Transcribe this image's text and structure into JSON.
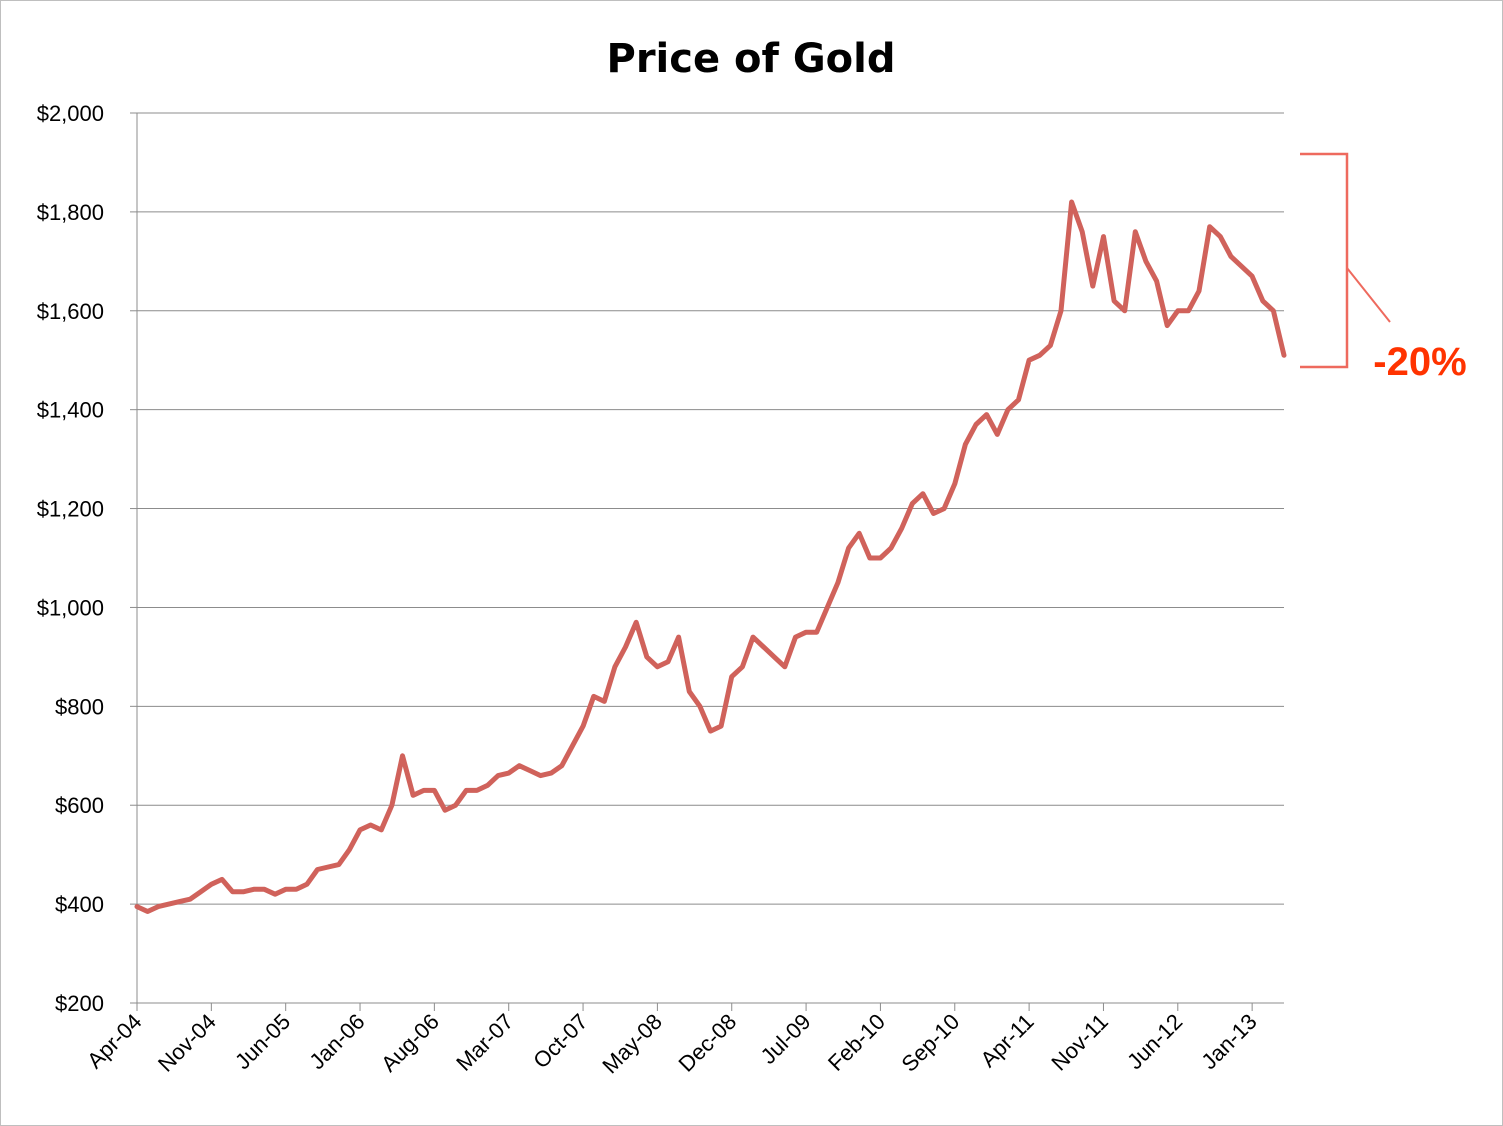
{
  "chart_data": {
    "type": "line",
    "title": "Price of Gold",
    "xlabel": "",
    "ylabel": "",
    "ylim": [
      200,
      2000
    ],
    "grid": true,
    "legend": "none",
    "y_ticks": [
      "$200",
      "$400",
      "$600",
      "$800",
      "$1,000",
      "$1,200",
      "$1,400",
      "$1,600",
      "$1,800",
      "$2,000"
    ],
    "x_ticks": [
      "Apr-04",
      "Nov-04",
      "Jun-05",
      "Jan-06",
      "Aug-06",
      "Mar-07",
      "Oct-07",
      "May-08",
      "Dec-08",
      "Jul-09",
      "Feb-10",
      "Sep-10",
      "Apr-11",
      "Nov-11",
      "Jun-12",
      "Jan-13"
    ],
    "x_range": [
      "Apr-04",
      "Apr-13"
    ],
    "series": [
      {
        "color": "#d0625b",
        "x": [
          "Apr-04",
          "May-04",
          "Jun-04",
          "Jul-04",
          "Aug-04",
          "Sep-04",
          "Oct-04",
          "Nov-04",
          "Dec-04",
          "Jan-05",
          "Feb-05",
          "Mar-05",
          "Apr-05",
          "May-05",
          "Jun-05",
          "Jul-05",
          "Aug-05",
          "Sep-05",
          "Oct-05",
          "Nov-05",
          "Dec-05",
          "Jan-06",
          "Feb-06",
          "Mar-06",
          "Apr-06",
          "May-06",
          "Jun-06",
          "Jul-06",
          "Aug-06",
          "Sep-06",
          "Oct-06",
          "Nov-06",
          "Dec-06",
          "Jan-07",
          "Feb-07",
          "Mar-07",
          "Apr-07",
          "May-07",
          "Jun-07",
          "Jul-07",
          "Aug-07",
          "Sep-07",
          "Oct-07",
          "Nov-07",
          "Dec-07",
          "Jan-08",
          "Feb-08",
          "Mar-08",
          "Apr-08",
          "May-08",
          "Jun-08",
          "Jul-08",
          "Aug-08",
          "Sep-08",
          "Oct-08",
          "Nov-08",
          "Dec-08",
          "Jan-09",
          "Feb-09",
          "Mar-09",
          "Apr-09",
          "May-09",
          "Jun-09",
          "Jul-09",
          "Aug-09",
          "Sep-09",
          "Oct-09",
          "Nov-09",
          "Dec-09",
          "Jan-10",
          "Feb-10",
          "Mar-10",
          "Apr-10",
          "May-10",
          "Jun-10",
          "Jul-10",
          "Aug-10",
          "Sep-10",
          "Oct-10",
          "Nov-10",
          "Dec-10",
          "Jan-11",
          "Feb-11",
          "Mar-11",
          "Apr-11",
          "May-11",
          "Jun-11",
          "Jul-11",
          "Aug-11",
          "Sep-11",
          "Oct-11",
          "Nov-11",
          "Dec-11",
          "Jan-12",
          "Feb-12",
          "Mar-12",
          "Apr-12",
          "May-12",
          "Jun-12",
          "Jul-12",
          "Aug-12",
          "Sep-12",
          "Oct-12",
          "Nov-12",
          "Dec-12",
          "Jan-13",
          "Feb-13",
          "Mar-13",
          "Apr-13"
        ],
        "values": [
          395,
          385,
          395,
          400,
          405,
          410,
          425,
          440,
          450,
          425,
          425,
          430,
          430,
          420,
          430,
          430,
          440,
          470,
          475,
          480,
          510,
          550,
          560,
          550,
          600,
          700,
          620,
          630,
          630,
          590,
          600,
          630,
          630,
          640,
          660,
          665,
          680,
          670,
          660,
          665,
          680,
          720,
          760,
          820,
          810,
          880,
          920,
          970,
          900,
          880,
          890,
          940,
          830,
          800,
          750,
          760,
          860,
          880,
          940,
          920,
          900,
          880,
          940,
          950,
          950,
          1000,
          1050,
          1120,
          1150,
          1100,
          1100,
          1120,
          1160,
          1210,
          1230,
          1190,
          1200,
          1250,
          1330,
          1370,
          1390,
          1350,
          1400,
          1420,
          1500,
          1510,
          1530,
          1600,
          1820,
          1760,
          1650,
          1750,
          1620,
          1600,
          1760,
          1700,
          1660,
          1570,
          1600,
          1600,
          1640,
          1770,
          1750,
          1710,
          1690,
          1670,
          1620,
          1600,
          1510
        ]
      }
    ],
    "annotations": [
      {
        "text": "-20%",
        "color": "#ff3300"
      }
    ]
  }
}
